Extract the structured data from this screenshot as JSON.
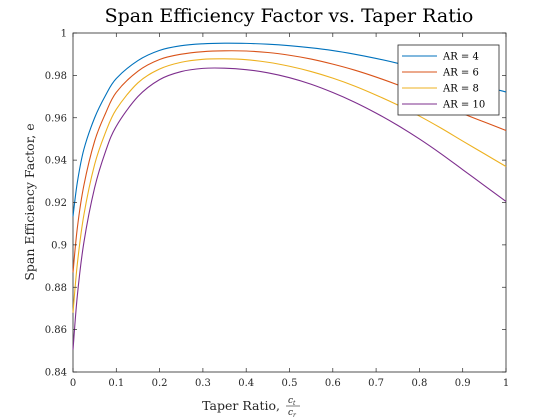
{
  "chart_data": {
    "type": "line",
    "title": "Span Efficiency Factor vs. Taper Ratio",
    "xlabel": "Taper Ratio,",
    "xlabel_fraction": {
      "numerator": "c",
      "numerator_sub": "t",
      "denominator": "c",
      "denominator_sub": "r"
    },
    "ylabel": "Span Efficiency Factor, e",
    "xlim": [
      0,
      1
    ],
    "ylim": [
      0.84,
      1
    ],
    "xticks": [
      "0",
      "0.1",
      "0.2",
      "0.3",
      "0.4",
      "0.5",
      "0.6",
      "0.7",
      "0.8",
      "0.9",
      "1"
    ],
    "yticks": [
      "0.84",
      "0.86",
      "0.88",
      "0.9",
      "0.92",
      "0.94",
      "0.96",
      "0.98",
      "1"
    ],
    "grid": false,
    "legend_position": "top-right",
    "x": [
      0,
      0.01,
      0.025,
      0.05,
      0.075,
      0.1,
      0.15,
      0.2,
      0.25,
      0.3,
      0.35,
      0.4,
      0.45,
      0.5,
      0.55,
      0.6,
      0.65,
      0.7,
      0.75,
      0.8,
      0.85,
      0.9,
      0.95,
      1.0
    ],
    "series": [
      {
        "name": "AR = 4",
        "color": "#0072BD",
        "values": [
          0.9135,
          0.9295,
          0.945,
          0.96,
          0.9705,
          0.9785,
          0.987,
          0.9918,
          0.994,
          0.9949,
          0.9952,
          0.9951,
          0.9947,
          0.994,
          0.993,
          0.9917,
          0.99,
          0.988,
          0.9857,
          0.9831,
          0.9801,
          0.9768,
          0.9747,
          0.9722
        ]
      },
      {
        "name": "AR = 6",
        "color": "#D95319",
        "values": [
          0.887,
          0.908,
          0.928,
          0.949,
          0.962,
          0.972,
          0.982,
          0.9875,
          0.99,
          0.9912,
          0.9916,
          0.9915,
          0.9908,
          0.9895,
          0.9877,
          0.9853,
          0.9825,
          0.9792,
          0.9755,
          0.9714,
          0.9669,
          0.962,
          0.958,
          0.954
        ]
      },
      {
        "name": "AR = 8",
        "color": "#EDB120",
        "values": [
          0.868,
          0.891,
          0.914,
          0.938,
          0.953,
          0.964,
          0.9765,
          0.983,
          0.9862,
          0.9876,
          0.9878,
          0.9874,
          0.9862,
          0.9843,
          0.9818,
          0.9787,
          0.975,
          0.9707,
          0.966,
          0.9608,
          0.9551,
          0.949,
          0.943,
          0.937
        ]
      },
      {
        "name": "AR = 10",
        "color": "#7E2F8E",
        "values": [
          0.8505,
          0.876,
          0.901,
          0.927,
          0.944,
          0.956,
          0.97,
          0.978,
          0.9818,
          0.9833,
          0.9834,
          0.9827,
          0.9812,
          0.9789,
          0.9758,
          0.9719,
          0.9674,
          0.9622,
          0.9564,
          0.95,
          0.943,
          0.9355,
          0.928,
          0.9205
        ]
      }
    ]
  }
}
